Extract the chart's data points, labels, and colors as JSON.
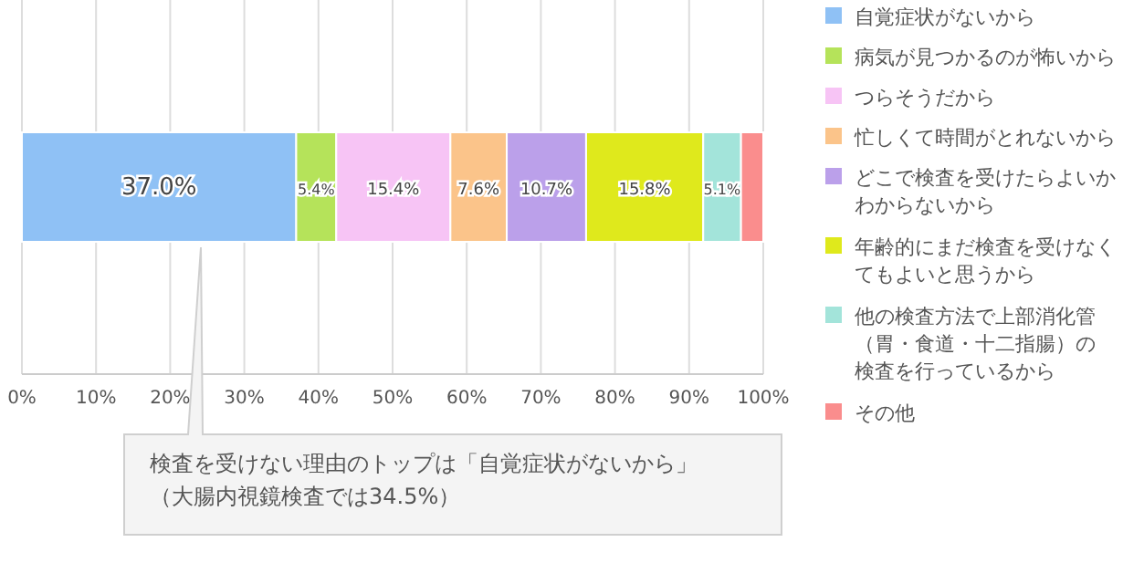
{
  "chart_data": {
    "type": "bar",
    "orientation": "horizontal",
    "stacked": true,
    "categories": [
      null
    ],
    "series": [
      {
        "name": "自覚症状がないから",
        "color": "#8fc1f5",
        "values": [
          37.0
        ],
        "value_labels": [
          "37.0%"
        ]
      },
      {
        "name": "病気が見つかるのが怖いから",
        "color": "#b5e35a",
        "values": [
          5.4
        ],
        "value_labels": [
          "5.4%"
        ]
      },
      {
        "name": "つらそうだから",
        "color": "#f7c4f5",
        "values": [
          15.4
        ],
        "value_labels": [
          "15.4%"
        ]
      },
      {
        "name": "忙しくて時間がとれないから",
        "color": "#fbc48a",
        "values": [
          7.6
        ],
        "value_labels": [
          "7.6%"
        ]
      },
      {
        "name": "どこで検査を受けたらよいかわからないから",
        "color": "#bba0ea",
        "values": [
          10.7
        ],
        "value_labels": [
          "10.7%"
        ]
      },
      {
        "name": "年齢的にまだ検査を受けなくてもよいと思うから",
        "color": "#dfe91c",
        "values": [
          15.8
        ],
        "value_labels": [
          "15.8%"
        ]
      },
      {
        "name": "他の検査方法で上部消化管（胃・食道・十二指腸）の検査を行っているから",
        "color": "#a3e4da",
        "values": [
          5.1
        ],
        "value_labels": [
          "5.1%"
        ]
      },
      {
        "name": "その他",
        "color": "#fa8d8d",
        "values": [
          3.0
        ],
        "value_labels": [
          null
        ]
      }
    ],
    "xlim": [
      0,
      100
    ],
    "xticks": [
      {
        "value": 0,
        "label": "0%"
      },
      {
        "value": 10,
        "label": "10%"
      },
      {
        "value": 20,
        "label": "20%"
      },
      {
        "value": 30,
        "label": "30%"
      },
      {
        "value": 40,
        "label": "40%"
      },
      {
        "value": 50,
        "label": "50%"
      },
      {
        "value": 60,
        "label": "60%"
      },
      {
        "value": 70,
        "label": "70%"
      },
      {
        "value": 80,
        "label": "80%"
      },
      {
        "value": 90,
        "label": "90%"
      },
      {
        "value": 100,
        "label": "100%"
      }
    ],
    "grid": "x",
    "legend": "right",
    "annotations": [
      "検査を受けない理由のトップは「自覚症状がないから」（大腸内視鏡検査では34.5%）"
    ]
  }
}
